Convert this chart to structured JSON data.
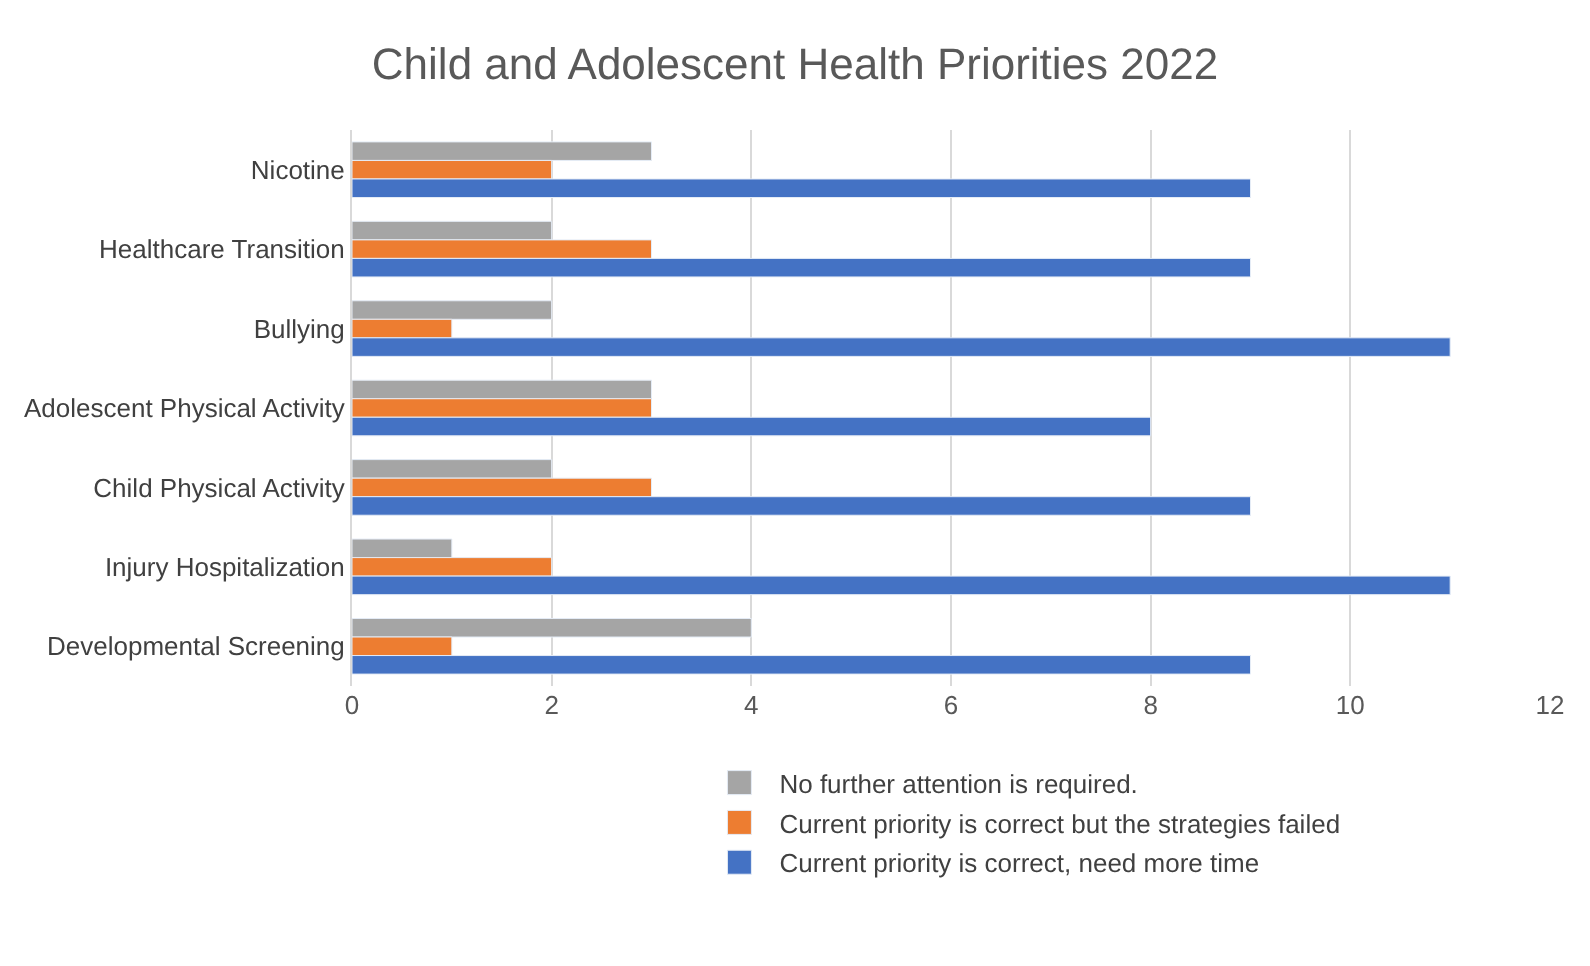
{
  "chart_data": {
    "type": "bar",
    "orientation": "horizontal",
    "title": "Child and Adolescent Health Priorities 2022",
    "categories": [
      "Nicotine",
      "Healthcare Transition",
      "Bullying",
      "Adolescent Physical Activity",
      "Child Physical Activity",
      "Injury Hospitalization",
      "Developmental Screening"
    ],
    "series": [
      {
        "name": "No further attention is required.",
        "color": "#a5a5a5",
        "values": [
          3,
          2,
          2,
          3,
          2,
          1,
          4
        ]
      },
      {
        "name": "Current priority is correct but the strategies failed",
        "color": "#ed7d31",
        "values": [
          2,
          3,
          1,
          3,
          3,
          2,
          1
        ]
      },
      {
        "name": "Current priority is correct, need more time",
        "color": "#4472c4",
        "values": [
          9,
          9,
          11,
          8,
          9,
          11,
          9
        ]
      }
    ],
    "xlim": [
      0,
      12
    ],
    "xticks": [
      0,
      2,
      4,
      6,
      8,
      10,
      12
    ],
    "grid": "x",
    "legend": "bottom"
  }
}
